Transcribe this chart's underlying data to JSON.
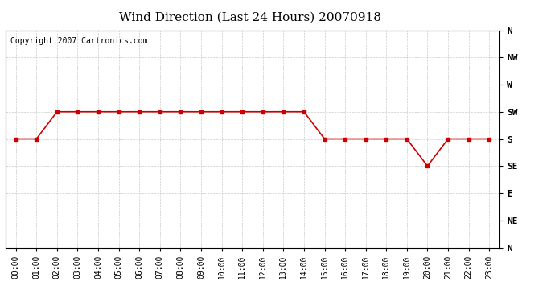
{
  "title": "Wind Direction (Last 24 Hours) 20070918",
  "copyright_text": "Copyright 2007 Cartronics.com",
  "x_labels": [
    "00:00",
    "01:00",
    "02:00",
    "03:00",
    "04:00",
    "05:00",
    "06:00",
    "07:00",
    "08:00",
    "09:00",
    "10:00",
    "11:00",
    "12:00",
    "13:00",
    "14:00",
    "15:00",
    "16:00",
    "17:00",
    "18:00",
    "19:00",
    "20:00",
    "21:00",
    "22:00",
    "23:00"
  ],
  "y_ticks": [
    360,
    315,
    270,
    225,
    180,
    135,
    90,
    45,
    0
  ],
  "y_tick_labels": [
    "N",
    "NW",
    "W",
    "SW",
    "S",
    "SE",
    "E",
    "NE",
    "N"
  ],
  "y_data": [
    180,
    180,
    225,
    225,
    225,
    225,
    225,
    225,
    225,
    225,
    225,
    225,
    225,
    225,
    225,
    180,
    180,
    180,
    180,
    180,
    135,
    180,
    180,
    180
  ],
  "line_color": "#cc0000",
  "marker": "s",
  "marker_size": 3,
  "bg_color": "#ffffff",
  "grid_color": "#cccccc",
  "title_fontsize": 11,
  "copyright_fontsize": 7,
  "tick_fontsize": 7,
  "ytick_fontsize": 8,
  "ylim_min": 0,
  "ylim_max": 360
}
